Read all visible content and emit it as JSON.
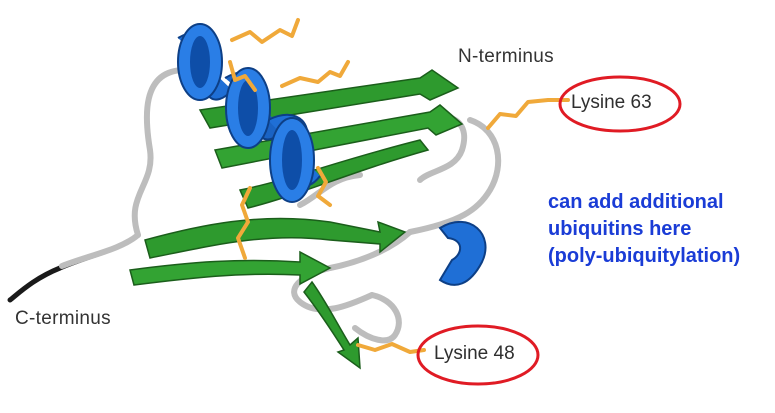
{
  "labels": {
    "n_terminus": "N-terminus",
    "c_terminus": "C-terminus",
    "lysine_63": "Lysine 63",
    "lysine_48": "Lysine 48"
  },
  "note": {
    "lines": [
      "can add additional",
      "ubiquitins here",
      "(poly-ubiquitylation)"
    ]
  },
  "colors": {
    "helix": "#1f6fd6",
    "strand": "#2e9a2e",
    "coil": "#c8c8c8",
    "side_chain": "#f0a93a",
    "highlight_ring": "#e01b24",
    "note_text": "#1a3cd6"
  }
}
